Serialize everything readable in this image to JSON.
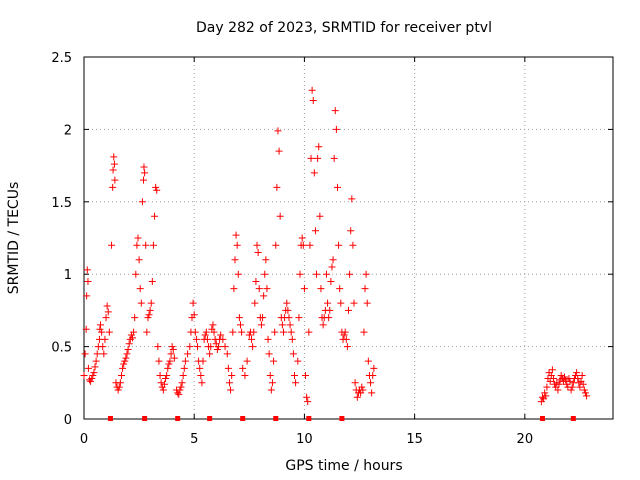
{
  "chart_data": {
    "type": "scatter",
    "title": "Day 282 of 2023, SRMTID for receiver ptvl",
    "xlabel": "GPS time / hours",
    "ylabel": "SRMTID / TECUs",
    "xlim": [
      0,
      24
    ],
    "ylim": [
      0,
      2.5
    ],
    "grid": true,
    "marker": "+",
    "color": "#ff0000",
    "x_ticks": [
      0,
      5,
      10,
      15,
      20
    ],
    "x_tick_labels": [
      "0",
      "5",
      "10",
      "15",
      "20"
    ],
    "y_ticks": [
      0,
      0.5,
      1,
      1.5,
      2,
      2.5
    ],
    "y_tick_labels": [
      "0",
      "0.5",
      "1",
      "1.5",
      "2",
      "2.5"
    ],
    "baseline_markers_x": [
      1.2,
      2.75,
      4.25,
      5.7,
      7.2,
      8.7,
      10.2,
      11.7,
      20.8,
      22.2
    ],
    "series": [
      {
        "name": "SRMTID",
        "points": [
          [
            0.0,
            0.3
          ],
          [
            0.05,
            0.45
          ],
          [
            0.1,
            0.62
          ],
          [
            0.12,
            0.85
          ],
          [
            0.15,
            1.03
          ],
          [
            0.18,
            0.95
          ],
          [
            0.2,
            0.35
          ],
          [
            0.25,
            0.27
          ],
          [
            0.3,
            0.26
          ],
          [
            0.35,
            0.28
          ],
          [
            0.4,
            0.3
          ],
          [
            0.45,
            0.32
          ],
          [
            0.5,
            0.36
          ],
          [
            0.55,
            0.4
          ],
          [
            0.6,
            0.45
          ],
          [
            0.65,
            0.5
          ],
          [
            0.7,
            0.55
          ],
          [
            0.72,
            0.62
          ],
          [
            0.75,
            0.65
          ],
          [
            0.8,
            0.6
          ],
          [
            0.85,
            0.5
          ],
          [
            0.9,
            0.45
          ],
          [
            0.95,
            0.55
          ],
          [
            1.0,
            0.7
          ],
          [
            1.05,
            0.78
          ],
          [
            1.1,
            0.74
          ],
          [
            1.15,
            0.6
          ],
          [
            1.25,
            1.2
          ],
          [
            1.3,
            1.6
          ],
          [
            1.32,
            1.72
          ],
          [
            1.35,
            1.81
          ],
          [
            1.38,
            1.76
          ],
          [
            1.4,
            1.65
          ],
          [
            1.45,
            0.25
          ],
          [
            1.5,
            0.22
          ],
          [
            1.55,
            0.2
          ],
          [
            1.6,
            0.22
          ],
          [
            1.65,
            0.25
          ],
          [
            1.7,
            0.3
          ],
          [
            1.75,
            0.35
          ],
          [
            1.8,
            0.38
          ],
          [
            1.85,
            0.4
          ],
          [
            1.9,
            0.42
          ],
          [
            1.95,
            0.45
          ],
          [
            2.0,
            0.48
          ],
          [
            2.05,
            0.52
          ],
          [
            2.1,
            0.55
          ],
          [
            2.15,
            0.58
          ],
          [
            2.2,
            0.56
          ],
          [
            2.25,
            0.6
          ],
          [
            2.3,
            0.7
          ],
          [
            2.35,
            1.0
          ],
          [
            2.4,
            1.2
          ],
          [
            2.45,
            1.25
          ],
          [
            2.5,
            1.1
          ],
          [
            2.55,
            0.9
          ],
          [
            2.6,
            0.8
          ],
          [
            2.65,
            1.5
          ],
          [
            2.7,
            1.65
          ],
          [
            2.72,
            1.74
          ],
          [
            2.75,
            1.7
          ],
          [
            2.8,
            1.2
          ],
          [
            2.85,
            0.6
          ],
          [
            2.9,
            0.7
          ],
          [
            2.95,
            0.72
          ],
          [
            3.0,
            0.75
          ],
          [
            3.05,
            0.8
          ],
          [
            3.1,
            0.95
          ],
          [
            3.15,
            1.2
          ],
          [
            3.2,
            1.4
          ],
          [
            3.25,
            1.6
          ],
          [
            3.3,
            1.58
          ],
          [
            3.35,
            0.5
          ],
          [
            3.4,
            0.4
          ],
          [
            3.45,
            0.3
          ],
          [
            3.5,
            0.25
          ],
          [
            3.55,
            0.22
          ],
          [
            3.6,
            0.2
          ],
          [
            3.65,
            0.24
          ],
          [
            3.7,
            0.28
          ],
          [
            3.75,
            0.3
          ],
          [
            3.8,
            0.35
          ],
          [
            3.85,
            0.38
          ],
          [
            3.9,
            0.4
          ],
          [
            3.95,
            0.45
          ],
          [
            4.0,
            0.5
          ],
          [
            4.05,
            0.48
          ],
          [
            4.1,
            0.42
          ],
          [
            4.2,
            0.2
          ],
          [
            4.25,
            0.18
          ],
          [
            4.3,
            0.17
          ],
          [
            4.35,
            0.2
          ],
          [
            4.4,
            0.22
          ],
          [
            4.45,
            0.25
          ],
          [
            4.5,
            0.3
          ],
          [
            4.55,
            0.35
          ],
          [
            4.6,
            0.4
          ],
          [
            4.7,
            0.45
          ],
          [
            4.8,
            0.5
          ],
          [
            4.85,
            0.6
          ],
          [
            4.9,
            0.7
          ],
          [
            4.95,
            0.8
          ],
          [
            5.0,
            0.72
          ],
          [
            5.05,
            0.6
          ],
          [
            5.1,
            0.55
          ],
          [
            5.15,
            0.5
          ],
          [
            5.2,
            0.4
          ],
          [
            5.25,
            0.35
          ],
          [
            5.3,
            0.3
          ],
          [
            5.35,
            0.25
          ],
          [
            5.4,
            0.4
          ],
          [
            5.45,
            0.55
          ],
          [
            5.5,
            0.58
          ],
          [
            5.55,
            0.6
          ],
          [
            5.6,
            0.55
          ],
          [
            5.65,
            0.5
          ],
          [
            5.7,
            0.45
          ],
          [
            5.75,
            0.5
          ],
          [
            5.8,
            0.62
          ],
          [
            5.85,
            0.65
          ],
          [
            5.9,
            0.6
          ],
          [
            5.95,
            0.55
          ],
          [
            6.0,
            0.52
          ],
          [
            6.05,
            0.48
          ],
          [
            6.1,
            0.5
          ],
          [
            6.15,
            0.55
          ],
          [
            6.2,
            0.58
          ],
          [
            6.3,
            0.55
          ],
          [
            6.4,
            0.5
          ],
          [
            6.5,
            0.45
          ],
          [
            6.55,
            0.35
          ],
          [
            6.6,
            0.25
          ],
          [
            6.65,
            0.2
          ],
          [
            6.7,
            0.3
          ],
          [
            6.75,
            0.6
          ],
          [
            6.8,
            0.9
          ],
          [
            6.85,
            1.1
          ],
          [
            6.9,
            1.27
          ],
          [
            6.95,
            1.2
          ],
          [
            7.0,
            1.0
          ],
          [
            7.05,
            0.7
          ],
          [
            7.1,
            0.65
          ],
          [
            7.15,
            0.6
          ],
          [
            7.2,
            0.35
          ],
          [
            7.3,
            0.3
          ],
          [
            7.4,
            0.4
          ],
          [
            7.5,
            0.58
          ],
          [
            7.55,
            0.6
          ],
          [
            7.6,
            0.55
          ],
          [
            7.65,
            0.5
          ],
          [
            7.7,
            0.6
          ],
          [
            7.75,
            0.8
          ],
          [
            7.8,
            0.95
          ],
          [
            7.85,
            1.2
          ],
          [
            7.9,
            1.15
          ],
          [
            7.95,
            0.9
          ],
          [
            8.0,
            0.7
          ],
          [
            8.05,
            0.65
          ],
          [
            8.1,
            0.7
          ],
          [
            8.15,
            0.85
          ],
          [
            8.2,
            1.0
          ],
          [
            8.25,
            1.1
          ],
          [
            8.3,
            0.9
          ],
          [
            8.35,
            0.55
          ],
          [
            8.4,
            0.45
          ],
          [
            8.45,
            0.3
          ],
          [
            8.5,
            0.2
          ],
          [
            8.55,
            0.25
          ],
          [
            8.6,
            0.4
          ],
          [
            8.65,
            0.6
          ],
          [
            8.7,
            1.2
          ],
          [
            8.75,
            1.6
          ],
          [
            8.8,
            1.99
          ],
          [
            8.85,
            1.85
          ],
          [
            8.9,
            1.4
          ],
          [
            8.95,
            0.7
          ],
          [
            9.0,
            0.65
          ],
          [
            9.05,
            0.6
          ],
          [
            9.1,
            0.7
          ],
          [
            9.15,
            0.75
          ],
          [
            9.2,
            0.8
          ],
          [
            9.25,
            0.75
          ],
          [
            9.3,
            0.7
          ],
          [
            9.35,
            0.65
          ],
          [
            9.4,
            0.6
          ],
          [
            9.45,
            0.55
          ],
          [
            9.5,
            0.45
          ],
          [
            9.55,
            0.3
          ],
          [
            9.6,
            0.25
          ],
          [
            9.7,
            0.4
          ],
          [
            9.75,
            0.7
          ],
          [
            9.8,
            1.0
          ],
          [
            9.85,
            1.2
          ],
          [
            9.9,
            1.25
          ],
          [
            9.95,
            1.2
          ],
          [
            10.0,
            0.9
          ],
          [
            10.05,
            0.3
          ],
          [
            10.1,
            0.15
          ],
          [
            10.15,
            0.12
          ],
          [
            10.2,
            0.6
          ],
          [
            10.25,
            1.2
          ],
          [
            10.3,
            1.8
          ],
          [
            10.35,
            2.27
          ],
          [
            10.4,
            2.2
          ],
          [
            10.45,
            1.7
          ],
          [
            10.5,
            1.3
          ],
          [
            10.55,
            1.0
          ],
          [
            10.6,
            1.8
          ],
          [
            10.65,
            1.88
          ],
          [
            10.7,
            1.4
          ],
          [
            10.75,
            0.9
          ],
          [
            10.8,
            0.7
          ],
          [
            10.85,
            0.65
          ],
          [
            10.9,
            0.7
          ],
          [
            10.95,
            0.75
          ],
          [
            11.0,
            1.0
          ],
          [
            11.05,
            0.8
          ],
          [
            11.1,
            0.7
          ],
          [
            11.15,
            0.75
          ],
          [
            11.2,
            0.95
          ],
          [
            11.25,
            1.05
          ],
          [
            11.3,
            1.1
          ],
          [
            11.35,
            1.8
          ],
          [
            11.4,
            2.13
          ],
          [
            11.45,
            2.0
          ],
          [
            11.5,
            1.6
          ],
          [
            11.55,
            1.2
          ],
          [
            11.6,
            0.9
          ],
          [
            11.65,
            0.8
          ],
          [
            11.7,
            0.6
          ],
          [
            11.75,
            0.55
          ],
          [
            11.8,
            0.58
          ],
          [
            11.85,
            0.6
          ],
          [
            11.9,
            0.55
          ],
          [
            11.95,
            0.5
          ],
          [
            12.0,
            0.75
          ],
          [
            12.05,
            1.0
          ],
          [
            12.1,
            1.3
          ],
          [
            12.15,
            1.52
          ],
          [
            12.2,
            1.2
          ],
          [
            12.25,
            0.8
          ],
          [
            12.3,
            0.25
          ],
          [
            12.35,
            0.2
          ],
          [
            12.4,
            0.15
          ],
          [
            12.45,
            0.18
          ],
          [
            12.5,
            0.2
          ],
          [
            12.55,
            0.18
          ],
          [
            12.6,
            0.22
          ],
          [
            12.65,
            0.2
          ],
          [
            12.7,
            0.6
          ],
          [
            12.75,
            0.9
          ],
          [
            12.8,
            1.0
          ],
          [
            12.85,
            0.8
          ],
          [
            12.9,
            0.4
          ],
          [
            12.95,
            0.3
          ],
          [
            13.0,
            0.25
          ],
          [
            13.05,
            0.18
          ],
          [
            13.1,
            0.3
          ],
          [
            13.15,
            0.35
          ],
          [
            20.75,
            0.12
          ],
          [
            20.8,
            0.15
          ],
          [
            20.85,
            0.14
          ],
          [
            20.9,
            0.18
          ],
          [
            20.95,
            0.16
          ],
          [
            21.0,
            0.22
          ],
          [
            21.05,
            0.28
          ],
          [
            21.1,
            0.32
          ],
          [
            21.15,
            0.26
          ],
          [
            21.2,
            0.3
          ],
          [
            21.25,
            0.34
          ],
          [
            21.3,
            0.28
          ],
          [
            21.35,
            0.24
          ],
          [
            21.4,
            0.22
          ],
          [
            21.45,
            0.25
          ],
          [
            21.5,
            0.2
          ],
          [
            21.55,
            0.24
          ],
          [
            21.6,
            0.27
          ],
          [
            21.65,
            0.3
          ],
          [
            21.7,
            0.28
          ],
          [
            21.75,
            0.26
          ],
          [
            21.8,
            0.29
          ],
          [
            21.85,
            0.27
          ],
          [
            21.9,
            0.24
          ],
          [
            21.95,
            0.22
          ],
          [
            22.0,
            0.28
          ],
          [
            22.05,
            0.26
          ],
          [
            22.1,
            0.2
          ],
          [
            22.15,
            0.22
          ],
          [
            22.2,
            0.25
          ],
          [
            22.25,
            0.28
          ],
          [
            22.3,
            0.3
          ],
          [
            22.35,
            0.32
          ],
          [
            22.4,
            0.28
          ],
          [
            22.45,
            0.25
          ],
          [
            22.5,
            0.22
          ],
          [
            22.55,
            0.26
          ],
          [
            22.6,
            0.3
          ],
          [
            22.65,
            0.24
          ],
          [
            22.7,
            0.2
          ],
          [
            22.75,
            0.18
          ],
          [
            22.8,
            0.16
          ]
        ]
      }
    ]
  }
}
